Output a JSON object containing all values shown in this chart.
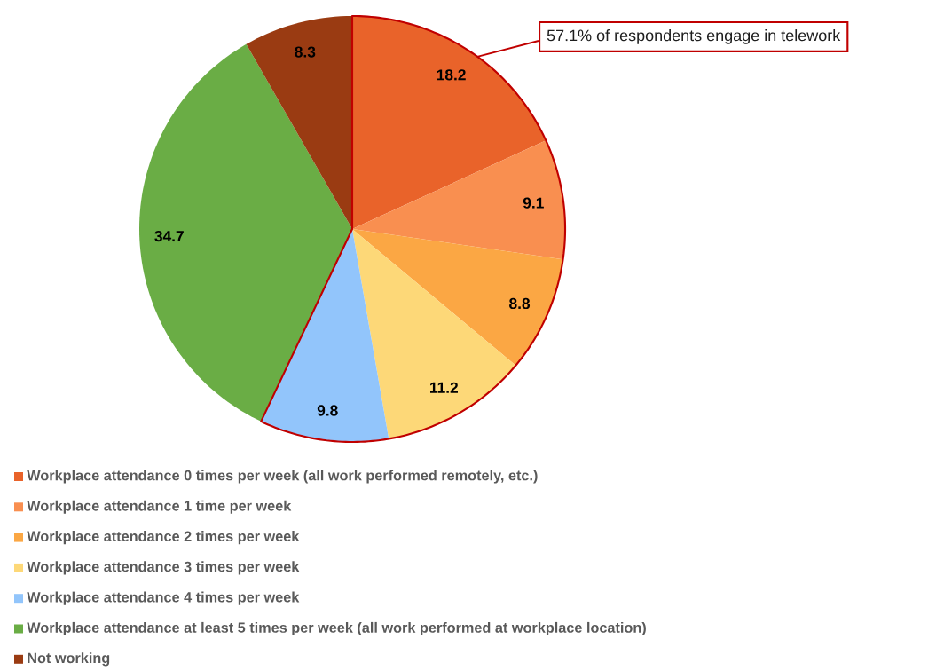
{
  "chart_data": {
    "type": "pie",
    "categories": [
      "Workplace attendance 0 times per week (all work performed remotely, etc.)",
      "Workplace attendance 1 time per week",
      "Workplace attendance 2 times per week",
      "Workplace attendance 3 times per week",
      "Workplace attendance 4 times per week",
      "Workplace attendance at least 5 times per week (all work performed at workplace location)",
      "Not working"
    ],
    "values": [
      18.2,
      9.1,
      8.8,
      11.2,
      9.8,
      34.7,
      8.3
    ],
    "colors": [
      "#e9632a",
      "#f98f50",
      "#fba744",
      "#fdd878",
      "#92c5fb",
      "#6aad45",
      "#9a3b12"
    ],
    "data_labels": true,
    "legend": "bottom",
    "annotations": [
      "57.1% of respondents engage in telework"
    ]
  }
}
